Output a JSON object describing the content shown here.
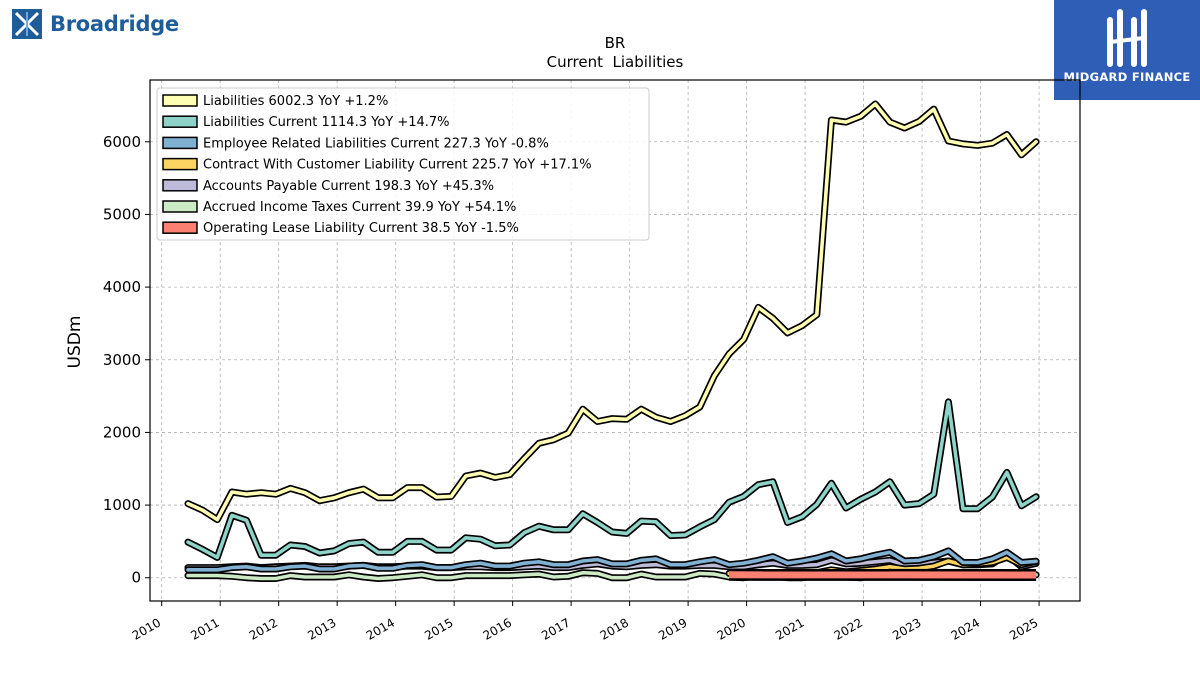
{
  "branding": {
    "left_logo": "Broadridge",
    "right_logo": "MIDGARD FINANCE"
  },
  "chart_data": {
    "type": "line",
    "title": "BR",
    "subtitle": "Current  Liabilities",
    "ylabel": "USDm",
    "xlabel": "",
    "xlim": [
      2009.8,
      2025.7
    ],
    "ylim": [
      -320,
      6850
    ],
    "x_ticks": [
      "2010",
      "2011",
      "2012",
      "2013",
      "2014",
      "2015",
      "2016",
      "2017",
      "2018",
      "2019",
      "2020",
      "2021",
      "2022",
      "2023",
      "2024",
      "2025"
    ],
    "y_ticks": [
      "0",
      "1000",
      "2000",
      "3000",
      "4000",
      "5000",
      "6000"
    ],
    "grid": true,
    "legend_position": "top-left",
    "series": [
      {
        "name": "Liabilities",
        "legend": "Liabilities  6002.3 YoY +1.2%",
        "color": "#ffffb3",
        "x": [
          2010.45,
          2010.7,
          2010.95,
          2011.2,
          2011.45,
          2011.7,
          2011.95,
          2012.2,
          2012.45,
          2012.7,
          2012.95,
          2013.2,
          2013.45,
          2013.7,
          2013.95,
          2014.2,
          2014.45,
          2014.7,
          2014.95,
          2015.2,
          2015.45,
          2015.7,
          2015.95,
          2016.2,
          2016.45,
          2016.7,
          2016.95,
          2017.2,
          2017.45,
          2017.7,
          2017.95,
          2018.2,
          2018.45,
          2018.7,
          2018.95,
          2019.2,
          2019.45,
          2019.7,
          2019.95,
          2020.2,
          2020.45,
          2020.7,
          2020.95,
          2021.2,
          2021.45,
          2021.7,
          2021.95,
          2022.2,
          2022.45,
          2022.7,
          2022.95,
          2023.2,
          2023.45,
          2023.7,
          2023.95,
          2024.2,
          2024.45,
          2024.7,
          2024.95
        ],
        "y": [
          1020,
          930,
          800,
          1180,
          1150,
          1170,
          1150,
          1230,
          1170,
          1060,
          1100,
          1170,
          1220,
          1100,
          1100,
          1240,
          1240,
          1110,
          1120,
          1400,
          1440,
          1380,
          1420,
          1640,
          1850,
          1900,
          1990,
          2320,
          2150,
          2190,
          2180,
          2320,
          2210,
          2150,
          2230,
          2350,
          2780,
          3080,
          3280,
          3720,
          3570,
          3370,
          3470,
          3620,
          6300,
          6270,
          6350,
          6520,
          6270,
          6190,
          6280,
          6450,
          6010,
          5970,
          5950,
          5980,
          6100,
          5820,
          6000
        ]
      },
      {
        "name": "Liabilities Current",
        "legend": "Liabilities Current  1114.3 YoY +14.7%",
        "color": "#8dd3c7",
        "x": [
          2010.45,
          2010.7,
          2010.95,
          2011.2,
          2011.45,
          2011.7,
          2011.95,
          2012.2,
          2012.45,
          2012.7,
          2012.95,
          2013.2,
          2013.45,
          2013.7,
          2013.95,
          2014.2,
          2014.45,
          2014.7,
          2014.95,
          2015.2,
          2015.45,
          2015.7,
          2015.95,
          2016.2,
          2016.45,
          2016.7,
          2016.95,
          2017.2,
          2017.45,
          2017.7,
          2017.95,
          2018.2,
          2018.45,
          2018.7,
          2018.95,
          2019.2,
          2019.45,
          2019.7,
          2019.95,
          2020.2,
          2020.45,
          2020.7,
          2020.95,
          2021.2,
          2021.45,
          2021.7,
          2021.95,
          2022.2,
          2022.45,
          2022.7,
          2022.95,
          2023.2,
          2023.45,
          2023.7,
          2023.95,
          2024.2,
          2024.45,
          2024.7,
          2024.95
        ],
        "y": [
          490,
          390,
          280,
          860,
          790,
          310,
          310,
          450,
          430,
          340,
          370,
          470,
          490,
          350,
          350,
          500,
          500,
          380,
          380,
          550,
          530,
          440,
          450,
          620,
          710,
          660,
          660,
          880,
          760,
          630,
          610,
          780,
          770,
          580,
          590,
          700,
          800,
          1040,
          1120,
          1280,
          1320,
          760,
          840,
          1010,
          1300,
          960,
          1080,
          1180,
          1320,
          1000,
          1020,
          1150,
          2420,
          950,
          950,
          1110,
          1450,
          990,
          1114
        ]
      },
      {
        "name": "Employee Related Liabilities Current",
        "legend": "Employee Related Liabilities Current  227.3 YoY -0.8%",
        "color": "#80b1d3",
        "x": [
          2010.45,
          2010.7,
          2010.95,
          2011.2,
          2011.45,
          2011.7,
          2011.95,
          2012.2,
          2012.45,
          2012.7,
          2012.95,
          2013.2,
          2013.45,
          2013.7,
          2013.95,
          2014.2,
          2014.45,
          2014.7,
          2014.95,
          2015.2,
          2015.45,
          2015.7,
          2015.95,
          2016.2,
          2016.45,
          2016.7,
          2016.95,
          2017.2,
          2017.45,
          2017.7,
          2017.95,
          2018.2,
          2018.45,
          2018.7,
          2018.95,
          2019.2,
          2019.45,
          2019.7,
          2019.95,
          2020.2,
          2020.45,
          2020.7,
          2020.95,
          2021.2,
          2021.45,
          2021.7,
          2021.95,
          2022.2,
          2022.45,
          2022.7,
          2022.95,
          2023.2,
          2023.45,
          2023.7,
          2023.95,
          2024.2,
          2024.45,
          2024.7,
          2024.95
        ],
        "y": [
          110,
          110,
          110,
          140,
          150,
          120,
          120,
          150,
          160,
          120,
          120,
          160,
          170,
          130,
          130,
          170,
          180,
          140,
          140,
          180,
          200,
          160,
          160,
          200,
          220,
          180,
          180,
          230,
          250,
          190,
          190,
          240,
          260,
          180,
          180,
          220,
          250,
          180,
          200,
          240,
          290,
          200,
          230,
          270,
          330,
          230,
          260,
          310,
          350,
          230,
          240,
          290,
          370,
          210,
          210,
          260,
          350,
          210,
          227
        ]
      },
      {
        "name": "Contract With Customer Liability Current",
        "legend": "Contract With Customer Liability Current  225.7 YoY +17.1%",
        "color": "#fdd462",
        "x": [
          2019.7,
          2019.95,
          2020.2,
          2020.45,
          2020.7,
          2020.95,
          2021.2,
          2021.45,
          2021.7,
          2021.95,
          2022.2,
          2022.45,
          2022.7,
          2022.95,
          2023.2,
          2023.45,
          2023.7,
          2023.95,
          2024.2,
          2024.45,
          2024.7,
          2024.95
        ],
        "y": [
          60,
          60,
          70,
          60,
          50,
          60,
          70,
          110,
          80,
          100,
          120,
          150,
          120,
          130,
          160,
          230,
          180,
          190,
          210,
          280,
          180,
          226
        ]
      },
      {
        "name": "Accounts Payable Current",
        "legend": "Accounts Payable Current  198.3 YoY +45.3%",
        "color": "#bebada",
        "x": [
          2010.45,
          2010.7,
          2010.95,
          2011.2,
          2011.45,
          2011.7,
          2011.95,
          2012.2,
          2012.45,
          2012.7,
          2012.95,
          2013.2,
          2013.45,
          2013.7,
          2013.95,
          2014.2,
          2014.45,
          2014.7,
          2014.95,
          2015.2,
          2015.45,
          2015.7,
          2015.95,
          2016.2,
          2016.45,
          2016.7,
          2016.95,
          2017.2,
          2017.45,
          2017.7,
          2017.95,
          2018.2,
          2018.45,
          2018.7,
          2018.95,
          2019.2,
          2019.45,
          2019.7,
          2019.95,
          2020.2,
          2020.45,
          2020.7,
          2020.95,
          2021.2,
          2021.45,
          2021.7,
          2021.95,
          2022.2,
          2022.45,
          2022.7,
          2022.95,
          2023.2,
          2023.45,
          2023.7,
          2023.95,
          2024.2,
          2024.45,
          2024.7,
          2024.95
        ],
        "y": [
          140,
          140,
          140,
          150,
          160,
          140,
          150,
          160,
          170,
          150,
          150,
          160,
          170,
          150,
          150,
          160,
          160,
          140,
          140,
          150,
          150,
          140,
          140,
          150,
          160,
          140,
          140,
          170,
          190,
          160,
          150,
          170,
          180,
          160,
          160,
          170,
          170,
          150,
          150,
          180,
          200,
          170,
          170,
          180,
          240,
          190,
          200,
          220,
          240,
          180,
          190,
          210,
          230,
          180,
          180,
          190,
          320,
          150,
          198
        ]
      },
      {
        "name": "Accrued Income Taxes Current",
        "legend": "Accrued Income Taxes Current  39.9 YoY +54.1%",
        "color": "#ccebc5",
        "x": [
          2010.45,
          2010.7,
          2010.95,
          2011.2,
          2011.45,
          2011.7,
          2011.95,
          2012.2,
          2012.45,
          2012.7,
          2012.95,
          2013.2,
          2013.45,
          2013.7,
          2013.95,
          2014.2,
          2014.45,
          2014.7,
          2014.95,
          2015.2,
          2015.45,
          2015.7,
          2015.95,
          2016.2,
          2016.45,
          2016.7,
          2016.95,
          2017.2,
          2017.45,
          2017.7,
          2017.95,
          2018.2,
          2018.45,
          2018.7,
          2018.95,
          2019.2,
          2019.45,
          2019.7,
          2019.95,
          2020.2,
          2020.45,
          2020.7,
          2020.95,
          2021.2,
          2021.45,
          2021.7,
          2021.95,
          2022.2,
          2022.45,
          2022.7,
          2022.95,
          2023.2,
          2023.45,
          2023.7,
          2023.95,
          2024.2,
          2024.45,
          2024.7,
          2024.95
        ],
        "y": [
          30,
          30,
          30,
          20,
          0,
          -10,
          -10,
          30,
          10,
          10,
          10,
          40,
          10,
          -10,
          0,
          20,
          40,
          0,
          0,
          30,
          30,
          30,
          30,
          40,
          50,
          10,
          20,
          70,
          60,
          0,
          0,
          50,
          10,
          10,
          10,
          60,
          50,
          10,
          0,
          30,
          20,
          0,
          0,
          30,
          30,
          10,
          0,
          50,
          30,
          10,
          10,
          40,
          40,
          20,
          10,
          40,
          60,
          10,
          40
        ]
      },
      {
        "name": "Operating Lease Liability Current",
        "legend": "Operating Lease Liability Current  38.5 YoY -1.5%",
        "color": "#fb8072",
        "x": [
          2019.7,
          2024.95
        ],
        "y": [
          40,
          38.5
        ]
      }
    ]
  }
}
